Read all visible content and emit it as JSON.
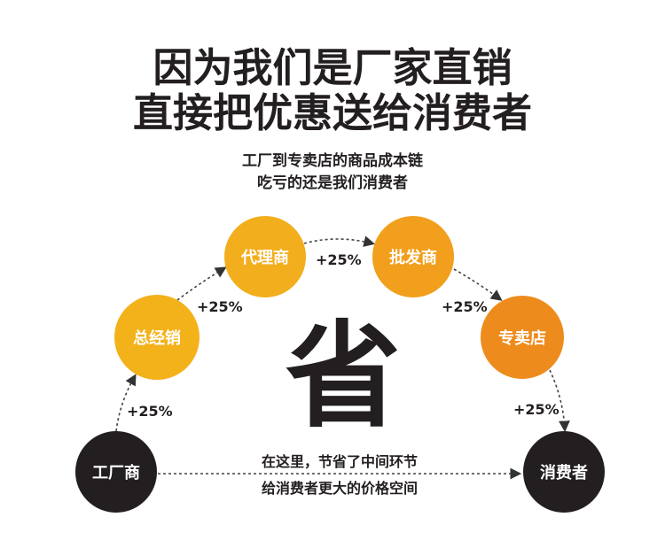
{
  "headline": [
    "因为我们是厂家直销",
    "直接把优惠送给消费者"
  ],
  "subtitle": [
    "工厂到专卖店的商品成本链",
    "吃亏的还是我们消费者"
  ],
  "center_char": "省",
  "nodes": [
    {
      "label": "工厂商",
      "color": "#231f20"
    },
    {
      "label": "总经销",
      "color": "#f3b21a"
    },
    {
      "label": "代理商",
      "color": "#f2ae1c"
    },
    {
      "label": "批发商",
      "color": "#f19f1c"
    },
    {
      "label": "专卖店",
      "color": "#ee8b1d"
    },
    {
      "label": "消费者",
      "color": "#231f20"
    }
  ],
  "markups": [
    "+25%",
    "+25%",
    "+25%",
    "+25%",
    "+25%"
  ],
  "bottom_note": [
    "在这里，节省了中间环节",
    "给消费者更大的价格空间"
  ]
}
